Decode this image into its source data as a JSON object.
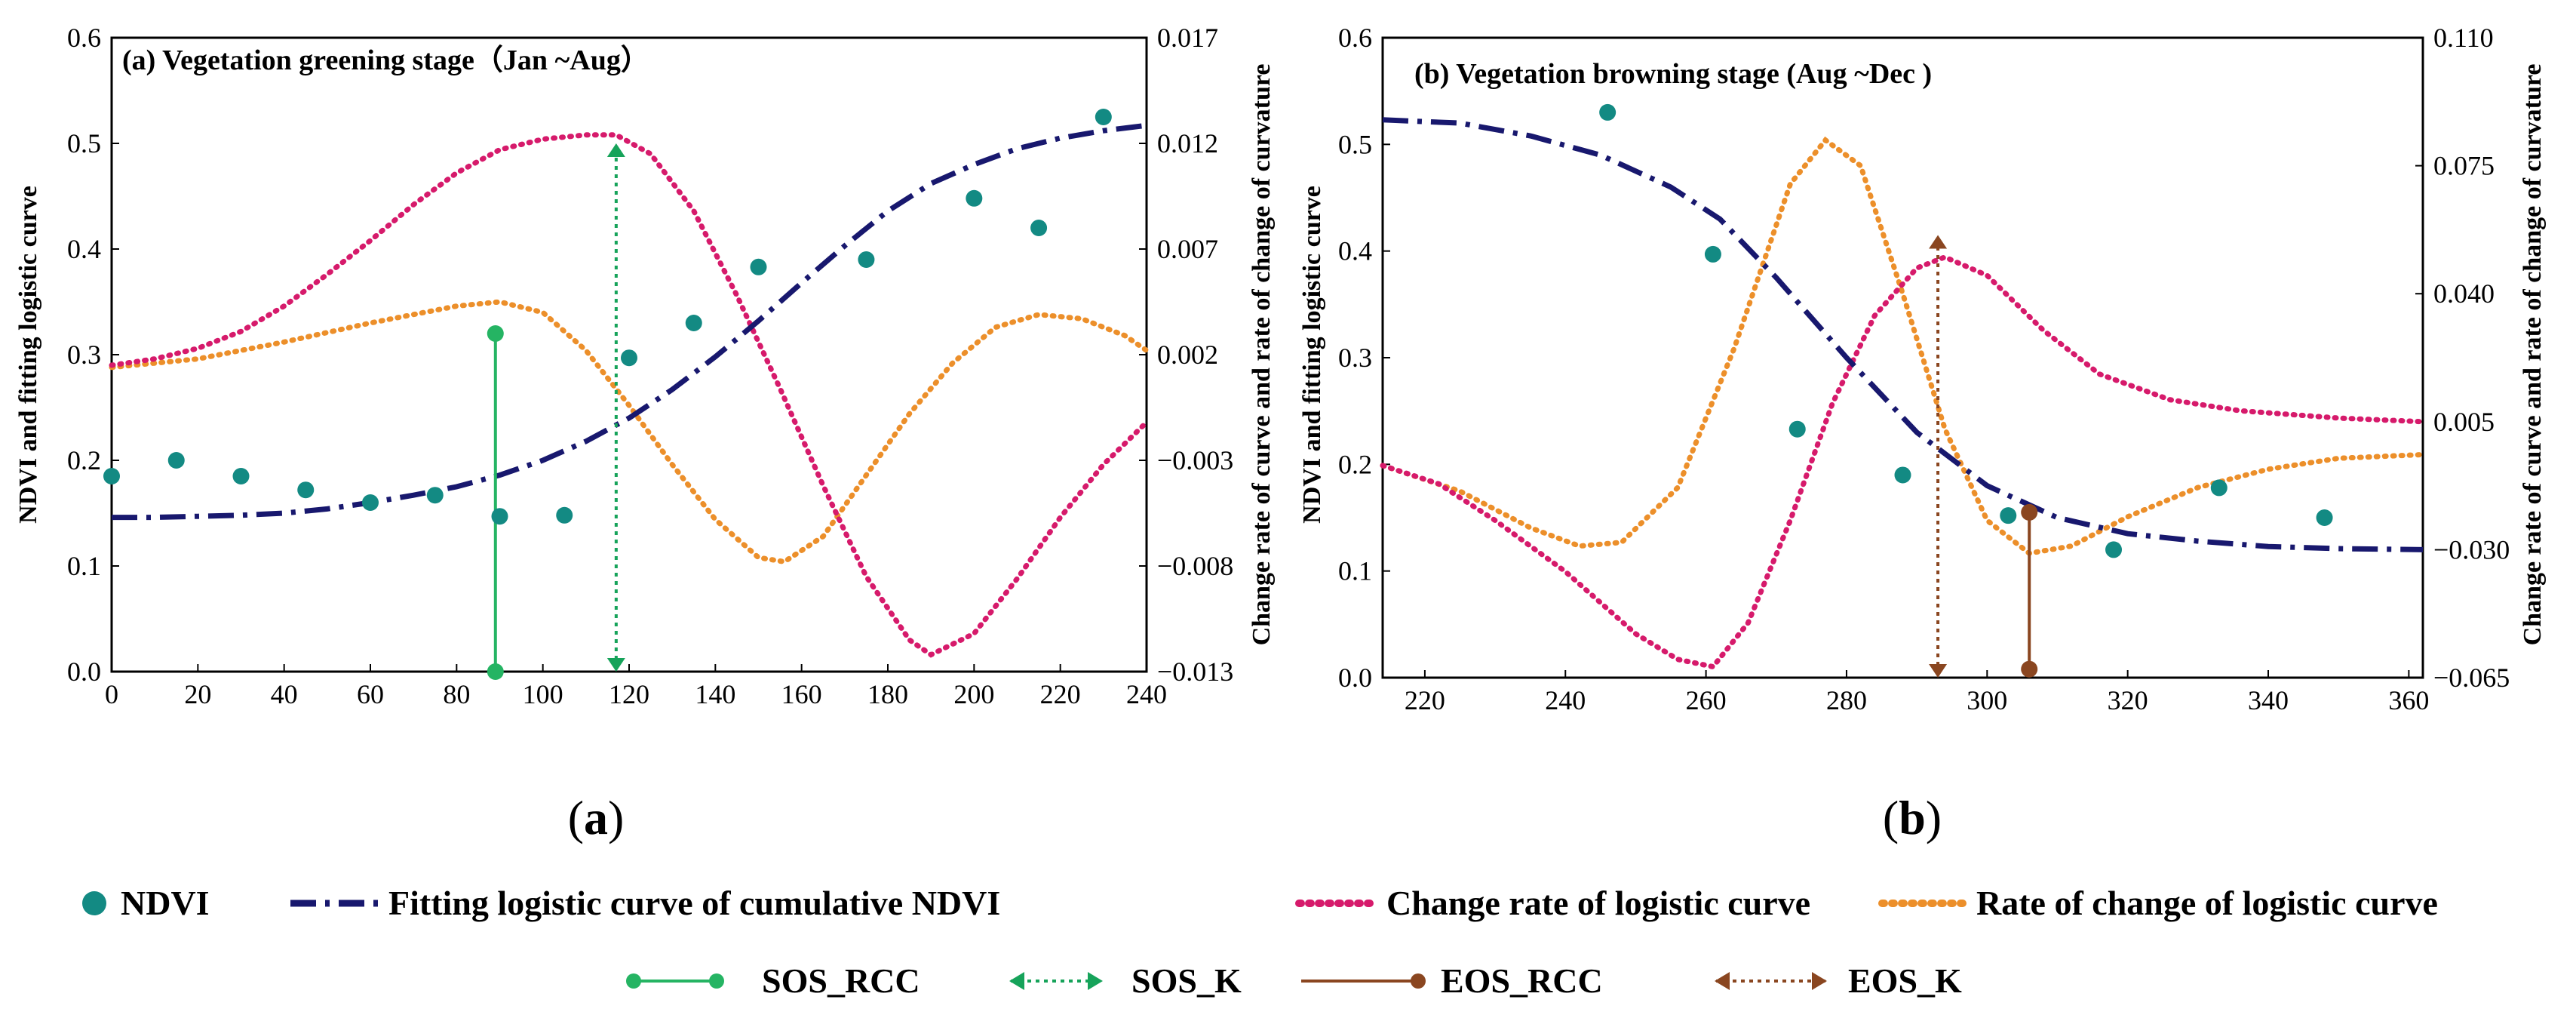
{
  "colors": {
    "ndvi": "#138a83",
    "fit": "#18186e",
    "change_rate": "#d61a6b",
    "rate_of_change": "#ec8f2a",
    "sos_rcc": "#25b463",
    "sos_k": "#16a35a",
    "eos_rcc": "#8a4620",
    "eos_k": "#8a4620"
  },
  "chart_data": [
    {
      "id": "a",
      "type": "line",
      "panel_label_prefix": "(",
      "panel_label_letter": "a",
      "panel_label_suffix": ")",
      "title": "(a) Vegetation greening stage（Jan ~Aug）",
      "ylabel_left": "NDVI and fitting logistic curve",
      "ylabel_right": "Change rate of curve and rate of change of curvature",
      "xlim": [
        0,
        240
      ],
      "ylim_left": [
        0,
        0.6
      ],
      "ylim_right": [
        -0.013,
        0.017
      ],
      "x_ticks": [
        "0",
        "20",
        "40",
        "60",
        "80",
        "100",
        "120",
        "140",
        "160",
        "180",
        "200",
        "220",
        "240"
      ],
      "y_left_ticks": [
        "0.0",
        "0.1",
        "0.2",
        "0.3",
        "0.4",
        "0.5",
        "0.6"
      ],
      "y_right_ticks": [
        "−0.013",
        "−0.008",
        "−0.003",
        "0.002",
        "0.007",
        "0.012",
        "0.017"
      ],
      "y_right_values": [
        -0.013,
        -0.008,
        -0.003,
        0.002,
        0.007,
        0.012,
        0.017
      ],
      "ndvi_points": [
        [
          0,
          0.185
        ],
        [
          15,
          0.2
        ],
        [
          30,
          0.185
        ],
        [
          45,
          0.172
        ],
        [
          60,
          0.16
        ],
        [
          75,
          0.167
        ],
        [
          90,
          0.147
        ],
        [
          105,
          0.148
        ],
        [
          120,
          0.297
        ],
        [
          135,
          0.33
        ],
        [
          150,
          0.383
        ],
        [
          175,
          0.39
        ],
        [
          200,
          0.448
        ],
        [
          215,
          0.42
        ],
        [
          230,
          0.525
        ]
      ],
      "fit_curve": [
        [
          0,
          0.146
        ],
        [
          10,
          0.146
        ],
        [
          20,
          0.147
        ],
        [
          30,
          0.148
        ],
        [
          40,
          0.15
        ],
        [
          50,
          0.154
        ],
        [
          60,
          0.16
        ],
        [
          70,
          0.167
        ],
        [
          80,
          0.175
        ],
        [
          90,
          0.186
        ],
        [
          100,
          0.2
        ],
        [
          110,
          0.218
        ],
        [
          120,
          0.24
        ],
        [
          130,
          0.267
        ],
        [
          140,
          0.298
        ],
        [
          150,
          0.332
        ],
        [
          160,
          0.368
        ],
        [
          170,
          0.403
        ],
        [
          180,
          0.436
        ],
        [
          190,
          0.462
        ],
        [
          200,
          0.48
        ],
        [
          210,
          0.495
        ],
        [
          220,
          0.505
        ],
        [
          230,
          0.512
        ],
        [
          240,
          0.517
        ]
      ],
      "change_rate_curve": [
        [
          0,
          0.0015
        ],
        [
          10,
          0.0018
        ],
        [
          20,
          0.0023
        ],
        [
          30,
          0.0031
        ],
        [
          40,
          0.0043
        ],
        [
          50,
          0.0058
        ],
        [
          60,
          0.0074
        ],
        [
          70,
          0.0091
        ],
        [
          80,
          0.0106
        ],
        [
          90,
          0.0117
        ],
        [
          100,
          0.0122
        ],
        [
          110,
          0.0124
        ],
        [
          117,
          0.0124
        ],
        [
          125,
          0.0115
        ],
        [
          135,
          0.0088
        ],
        [
          145,
          0.0048
        ],
        [
          155,
          0.0004
        ],
        [
          165,
          -0.0042
        ],
        [
          175,
          -0.0085
        ],
        [
          185,
          -0.0115
        ],
        [
          190,
          -0.0122
        ],
        [
          200,
          -0.0112
        ],
        [
          210,
          -0.0086
        ],
        [
          220,
          -0.0057
        ],
        [
          230,
          -0.0032
        ],
        [
          240,
          -0.0012
        ]
      ],
      "rate_of_change_curve": [
        [
          0,
          0.0014
        ],
        [
          20,
          0.0018
        ],
        [
          40,
          0.0026
        ],
        [
          60,
          0.0035
        ],
        [
          80,
          0.0043
        ],
        [
          90,
          0.0045
        ],
        [
          100,
          0.004
        ],
        [
          110,
          0.0022
        ],
        [
          120,
          -0.0004
        ],
        [
          130,
          -0.0032
        ],
        [
          140,
          -0.0058
        ],
        [
          150,
          -0.0076
        ],
        [
          156,
          -0.0078
        ],
        [
          165,
          -0.0066
        ],
        [
          175,
          -0.0037
        ],
        [
          185,
          -0.0008
        ],
        [
          195,
          0.0016
        ],
        [
          205,
          0.0033
        ],
        [
          215,
          0.0039
        ],
        [
          225,
          0.0037
        ],
        [
          235,
          0.0029
        ],
        [
          240,
          0.0022
        ]
      ],
      "markers": [
        {
          "name": "SOS_RCC",
          "x": 89,
          "y_bottom": 0.0,
          "y_top": 0.32
        },
        {
          "name": "SOS_K",
          "x": 117,
          "y_bottom": 0.0,
          "y_top": 0.5
        }
      ]
    },
    {
      "id": "b",
      "type": "line",
      "panel_label_prefix": "(",
      "panel_label_letter": "b",
      "panel_label_suffix": ")",
      "title": "(b) Vegetation browning stage (Aug ~Dec )",
      "ylabel_left": "NDVI and fitting logistic curve",
      "ylabel_right": "Change rate of curve and rate of change of curvature",
      "xlim": [
        214,
        362
      ],
      "ylim_left": [
        0,
        0.6
      ],
      "ylim_right": [
        -0.065,
        0.11
      ],
      "x_ticks": [
        "220",
        "240",
        "260",
        "280",
        "300",
        "320",
        "340",
        "360"
      ],
      "x_tick_values": [
        220,
        240,
        260,
        280,
        300,
        320,
        340,
        360
      ],
      "y_left_ticks": [
        "0.0",
        "0.1",
        "0.2",
        "0.3",
        "0.4",
        "0.5",
        "0.6"
      ],
      "y_right_ticks": [
        "−0.065",
        "−0.030",
        "0.005",
        "0.040",
        "0.075",
        "0.110"
      ],
      "y_right_values": [
        -0.065,
        -0.03,
        0.005,
        0.04,
        0.075,
        0.11
      ],
      "ndvi_points": [
        [
          246,
          0.53
        ],
        [
          261,
          0.397
        ],
        [
          273,
          0.233
        ],
        [
          288,
          0.19
        ],
        [
          303,
          0.152
        ],
        [
          318,
          0.12
        ],
        [
          333,
          0.178
        ],
        [
          348,
          0.15
        ]
      ],
      "fit_curve": [
        [
          214,
          0.523
        ],
        [
          225,
          0.52
        ],
        [
          235,
          0.508
        ],
        [
          245,
          0.49
        ],
        [
          255,
          0.46
        ],
        [
          262,
          0.43
        ],
        [
          270,
          0.375
        ],
        [
          280,
          0.3
        ],
        [
          290,
          0.23
        ],
        [
          300,
          0.18
        ],
        [
          310,
          0.15
        ],
        [
          320,
          0.135
        ],
        [
          330,
          0.128
        ],
        [
          340,
          0.123
        ],
        [
          350,
          0.121
        ],
        [
          362,
          0.12
        ]
      ],
      "change_rate_curve": [
        [
          214,
          -0.007
        ],
        [
          222,
          -0.012
        ],
        [
          230,
          -0.022
        ],
        [
          240,
          -0.036
        ],
        [
          250,
          -0.053
        ],
        [
          256,
          -0.06
        ],
        [
          261,
          -0.062
        ],
        [
          266,
          -0.05
        ],
        [
          272,
          -0.022
        ],
        [
          278,
          0.01
        ],
        [
          284,
          0.034
        ],
        [
          290,
          0.047
        ],
        [
          294,
          0.05
        ],
        [
          300,
          0.045
        ],
        [
          308,
          0.03
        ],
        [
          316,
          0.018
        ],
        [
          326,
          0.011
        ],
        [
          336,
          0.008
        ],
        [
          350,
          0.006
        ],
        [
          362,
          0.005
        ]
      ],
      "rate_of_change_curve": [
        [
          214,
          -0.007
        ],
        [
          225,
          -0.014
        ],
        [
          235,
          -0.024
        ],
        [
          242,
          -0.029
        ],
        [
          248,
          -0.028
        ],
        [
          256,
          -0.013
        ],
        [
          264,
          0.025
        ],
        [
          272,
          0.07
        ],
        [
          277,
          0.082
        ],
        [
          282,
          0.075
        ],
        [
          288,
          0.04
        ],
        [
          294,
          0.003
        ],
        [
          300,
          -0.022
        ],
        [
          306,
          -0.031
        ],
        [
          312,
          -0.029
        ],
        [
          320,
          -0.021
        ],
        [
          330,
          -0.013
        ],
        [
          340,
          -0.008
        ],
        [
          350,
          -0.005
        ],
        [
          362,
          -0.004
        ]
      ],
      "markers": [
        {
          "name": "EOS_K",
          "x": 293,
          "y_bottom": 0.0,
          "y_top": 0.415
        },
        {
          "name": "EOS_RCC",
          "x": 306,
          "y_bottom": 0.008,
          "y_top": 0.155
        }
      ]
    }
  ],
  "legend": {
    "row1": [
      {
        "key": "ndvi",
        "label": "NDVI"
      },
      {
        "key": "fit",
        "label": "Fitting logistic curve of cumulative NDVI"
      },
      {
        "key": "change_rate",
        "label": "Change rate of logistic curve"
      },
      {
        "key": "rate_of_change",
        "label": "Rate of change of logistic curve"
      }
    ],
    "row2": [
      {
        "key": "sos_rcc",
        "label": "SOS_RCC"
      },
      {
        "key": "sos_k",
        "label": "SOS_K"
      },
      {
        "key": "eos_rcc",
        "label": "EOS_RCC"
      },
      {
        "key": "eos_k",
        "label": "EOS_K"
      }
    ]
  }
}
